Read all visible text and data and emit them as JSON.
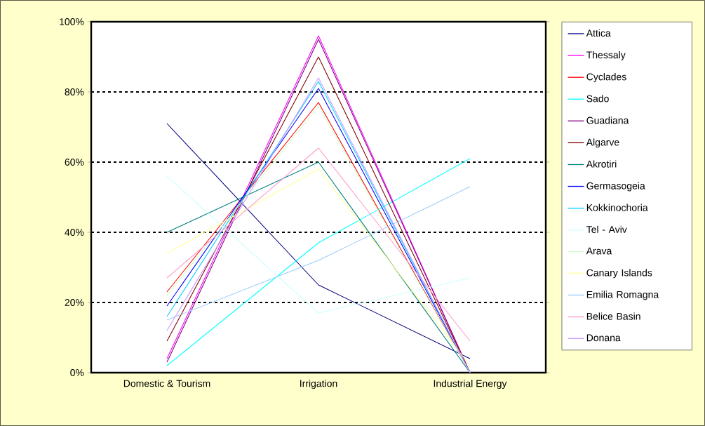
{
  "chart_data": {
    "type": "line",
    "categories": [
      "Domestic & Tourism",
      "Irrigation",
      "Industrial Energy"
    ],
    "series": [
      {
        "name": "Attica",
        "color": "#000080",
        "values": [
          71,
          25,
          4
        ]
      },
      {
        "name": "Thessaly",
        "color": "#ff00ff",
        "values": [
          4,
          96,
          0
        ]
      },
      {
        "name": "Cyclades",
        "color": "#ff0000",
        "values": [
          23,
          77,
          0
        ]
      },
      {
        "name": "Sado",
        "color": "#00ffff",
        "values": [
          2,
          37,
          61
        ]
      },
      {
        "name": "Guadiana",
        "color": "#800080",
        "values": [
          3,
          95,
          0
        ]
      },
      {
        "name": "Algarve",
        "color": "#800000",
        "values": [
          9,
          90,
          0
        ]
      },
      {
        "name": "Akrotiri",
        "color": "#008080",
        "values": [
          40,
          60,
          0
        ]
      },
      {
        "name": "Germasogeia",
        "color": "#0000ff",
        "values": [
          19,
          81,
          0
        ]
      },
      {
        "name": "Kokkinochoria",
        "color": "#00ccff",
        "values": [
          16,
          83,
          0
        ]
      },
      {
        "name": "Tel - Aviv",
        "color": "#ccffff",
        "values": [
          56,
          17,
          27
        ]
      },
      {
        "name": "Arava",
        "color": "#ccffcc",
        "values": [
          22,
          76,
          0
        ]
      },
      {
        "name": "Canary Islands",
        "color": "#ffff99",
        "values": [
          34,
          58,
          2
        ]
      },
      {
        "name": "Emilia Romagna",
        "color": "#99ccff",
        "values": [
          15,
          32,
          53
        ]
      },
      {
        "name": "Belice Basin",
        "color": "#ff99cc",
        "values": [
          27,
          64,
          9
        ]
      },
      {
        "name": "Donana",
        "color": "#cc99ff",
        "values": [
          12,
          84,
          0
        ]
      }
    ],
    "ylim": [
      0,
      100
    ],
    "yticks": [
      {
        "value": 0,
        "label": "0%"
      },
      {
        "value": 20,
        "label": "20%"
      },
      {
        "value": 40,
        "label": "40%"
      },
      {
        "value": 60,
        "label": "60%"
      },
      {
        "value": 80,
        "label": "80%"
      },
      {
        "value": 100,
        "label": "100%"
      }
    ],
    "grid": "y",
    "legend": "right",
    "marker": "none",
    "line_style": "solid"
  }
}
